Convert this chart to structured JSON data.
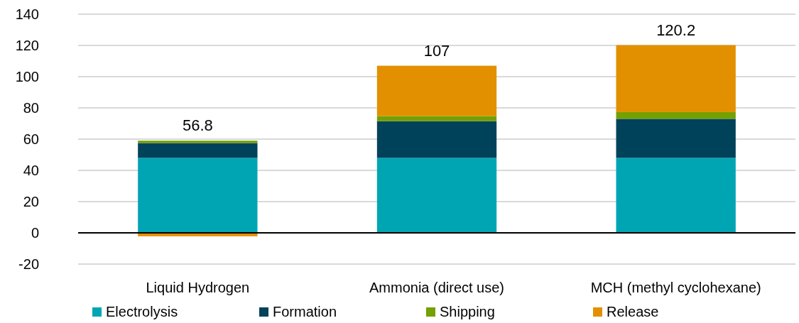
{
  "chart_data": {
    "type": "bar",
    "stacked": true,
    "categories": [
      "Liquid Hydrogen",
      "Ammonia (direct use)",
      "MCH (methyl cyclohexane)"
    ],
    "series": [
      {
        "name": "Electrolysis",
        "color": "#00a5b4",
        "values": [
          48,
          48,
          48
        ]
      },
      {
        "name": "Formation",
        "color": "#00425a",
        "values": [
          9.5,
          23.5,
          25
        ]
      },
      {
        "name": "Shipping",
        "color": "#74a000",
        "values": [
          1.5,
          3.3,
          4.3
        ]
      },
      {
        "name": "Release",
        "color": "#e29000",
        "values": [
          -2.2,
          32.2,
          42.9
        ]
      }
    ],
    "totals": [
      "56.8",
      "107",
      "120.2"
    ],
    "ylim": [
      -20,
      140
    ],
    "yticks": [
      -20,
      0,
      20,
      40,
      60,
      80,
      100,
      120,
      140
    ],
    "grid": "y",
    "legend": "bottom"
  }
}
